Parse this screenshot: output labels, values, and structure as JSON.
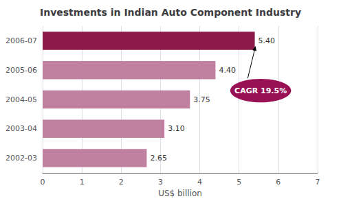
{
  "chart_data": {
    "type": "bar",
    "orientation": "horizontal",
    "title": "Investments in Indian Auto Component Industry",
    "categories": [
      "2006-07",
      "2005-06",
      "2004-05",
      "2003-04",
      "2002-03"
    ],
    "values": [
      5.4,
      4.4,
      3.75,
      3.1,
      2.65
    ],
    "value_labels": [
      "5.40",
      "4.40",
      "3.75",
      "3.10",
      "2.65"
    ],
    "colors": [
      "#8b1a4a",
      "#c080a0",
      "#c080a0",
      "#c080a0",
      "#c080a0"
    ],
    "xlabel": "US$ billion",
    "xlim": [
      0,
      7
    ],
    "xticks": [
      0,
      1,
      2,
      3,
      4,
      5,
      6,
      7
    ],
    "grid": true,
    "data_labels": true,
    "annotations": [
      "CAGR 19.5%"
    ]
  }
}
